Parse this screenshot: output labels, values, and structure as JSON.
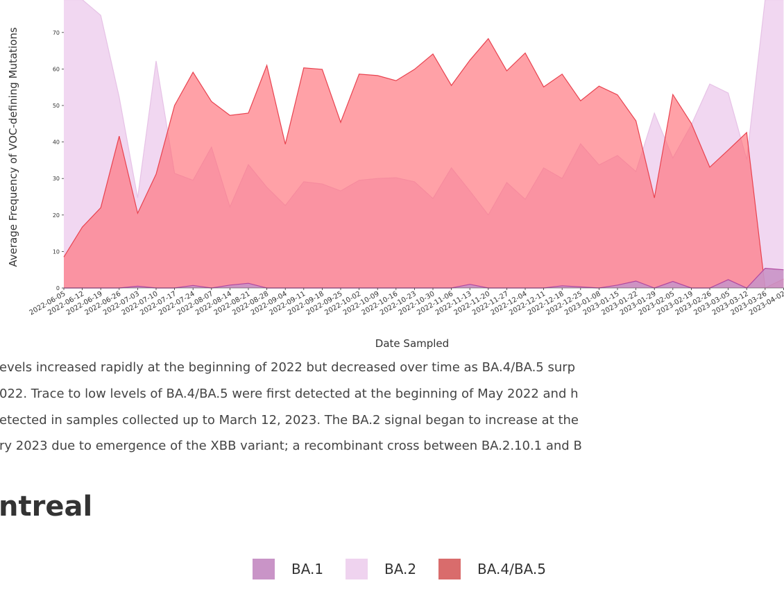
{
  "chart_data": {
    "type": "area",
    "y_label": "Average Frequency of VOC-defining Mutations",
    "x_label": "Date Sampled",
    "categories": [
      "2022-06-05",
      "2022-06-12",
      "2022-06-19",
      "2022-06-26",
      "2022-07-03",
      "2022-07-10",
      "2022-07-17",
      "2022-07-24",
      "2022-08-07",
      "2022-08-14",
      "2022-08-21",
      "2022-08-28",
      "2022-09-04",
      "2022-09-11",
      "2022-09-18",
      "2022-09-25",
      "2022-10-02",
      "2022-10-09",
      "2022-10-16",
      "2022-10-23",
      "2022-10-30",
      "2022-11-06",
      "2022-11-13",
      "2022-11-20",
      "2022-11-27",
      "2022-12-04",
      "2022-12-11",
      "2022-12-18",
      "2022-12-25",
      "2023-01-08",
      "2023-01-15",
      "2023-01-22",
      "2023-01-29",
      "2023-02-05",
      "2023-02-19",
      "2023-02-26",
      "2023-03-05",
      "2023-03-12",
      "2023-03-26",
      "2023-04-02"
    ],
    "series": [
      {
        "name": "BA.2",
        "color": "#efd3ef",
        "line_color": "#e6c2e6",
        "values": [
          79,
          79,
          74.7,
          52.3,
          24.7,
          62.2,
          31.4,
          29.5,
          38.6,
          22.2,
          33.8,
          27.6,
          22.6,
          29.1,
          28.5,
          26.6,
          29.5,
          30,
          30.2,
          29.1,
          24.5,
          32.9,
          26.6,
          20,
          28.9,
          24.3,
          32.9,
          30,
          39.5,
          33.7,
          36.3,
          31.9,
          47.9,
          35.6,
          44.7,
          55.9,
          53.4,
          35.2,
          79,
          79
        ]
      },
      {
        "name": "BA.4/BA.5",
        "color": "#d96c6c",
        "line_color": "#e8424f",
        "values": [
          8.5,
          16.7,
          22,
          41.6,
          20.5,
          31.2,
          50,
          59.1,
          51.1,
          47.3,
          47.9,
          61,
          39.4,
          60.3,
          59.9,
          45.4,
          58.6,
          58.2,
          56.8,
          59.9,
          64.1,
          55.5,
          62.4,
          68.3,
          59.5,
          64.4,
          55.1,
          58.6,
          51.3,
          55.3,
          52.9,
          45.8,
          24.7,
          53,
          45.1,
          33.1,
          37.8,
          42.6,
          0,
          2.5
        ]
      },
      {
        "name": "BA.1",
        "color": "#c994c7",
        "line_color": "#b0479f",
        "values": [
          0,
          0,
          0,
          0,
          0.5,
          0,
          0,
          0.7,
          0,
          0.8,
          1.3,
          0,
          0,
          0,
          0,
          0,
          0,
          0,
          0,
          0,
          0,
          0,
          1,
          0,
          0,
          0,
          0,
          0.6,
          0.3,
          0,
          0.8,
          1.9,
          0,
          1.8,
          0,
          0,
          2.3,
          0,
          5.4,
          5
        ]
      }
    ],
    "ylim": [
      0,
      80
    ],
    "yticks": [
      0,
      10,
      20,
      30,
      40,
      50,
      60,
      70
    ]
  },
  "paragraph": [
    "evels increased rapidly at the beginning of 2022 but decreased over time as BA.4/BA.5 surp",
    "022. Trace to low levels of BA.4/BA.5 were first detected at the beginning of May 2022 and h",
    "etected in samples collected up to March 12, 2023. The BA.2 signal began to increase at the",
    "ry 2023 due to emergence of the XBB variant; a recombinant cross between BA.2.10.1 and B"
  ],
  "heading": "ntreal",
  "legend": [
    "BA.1",
    "BA.2",
    "BA.4/BA.5"
  ]
}
